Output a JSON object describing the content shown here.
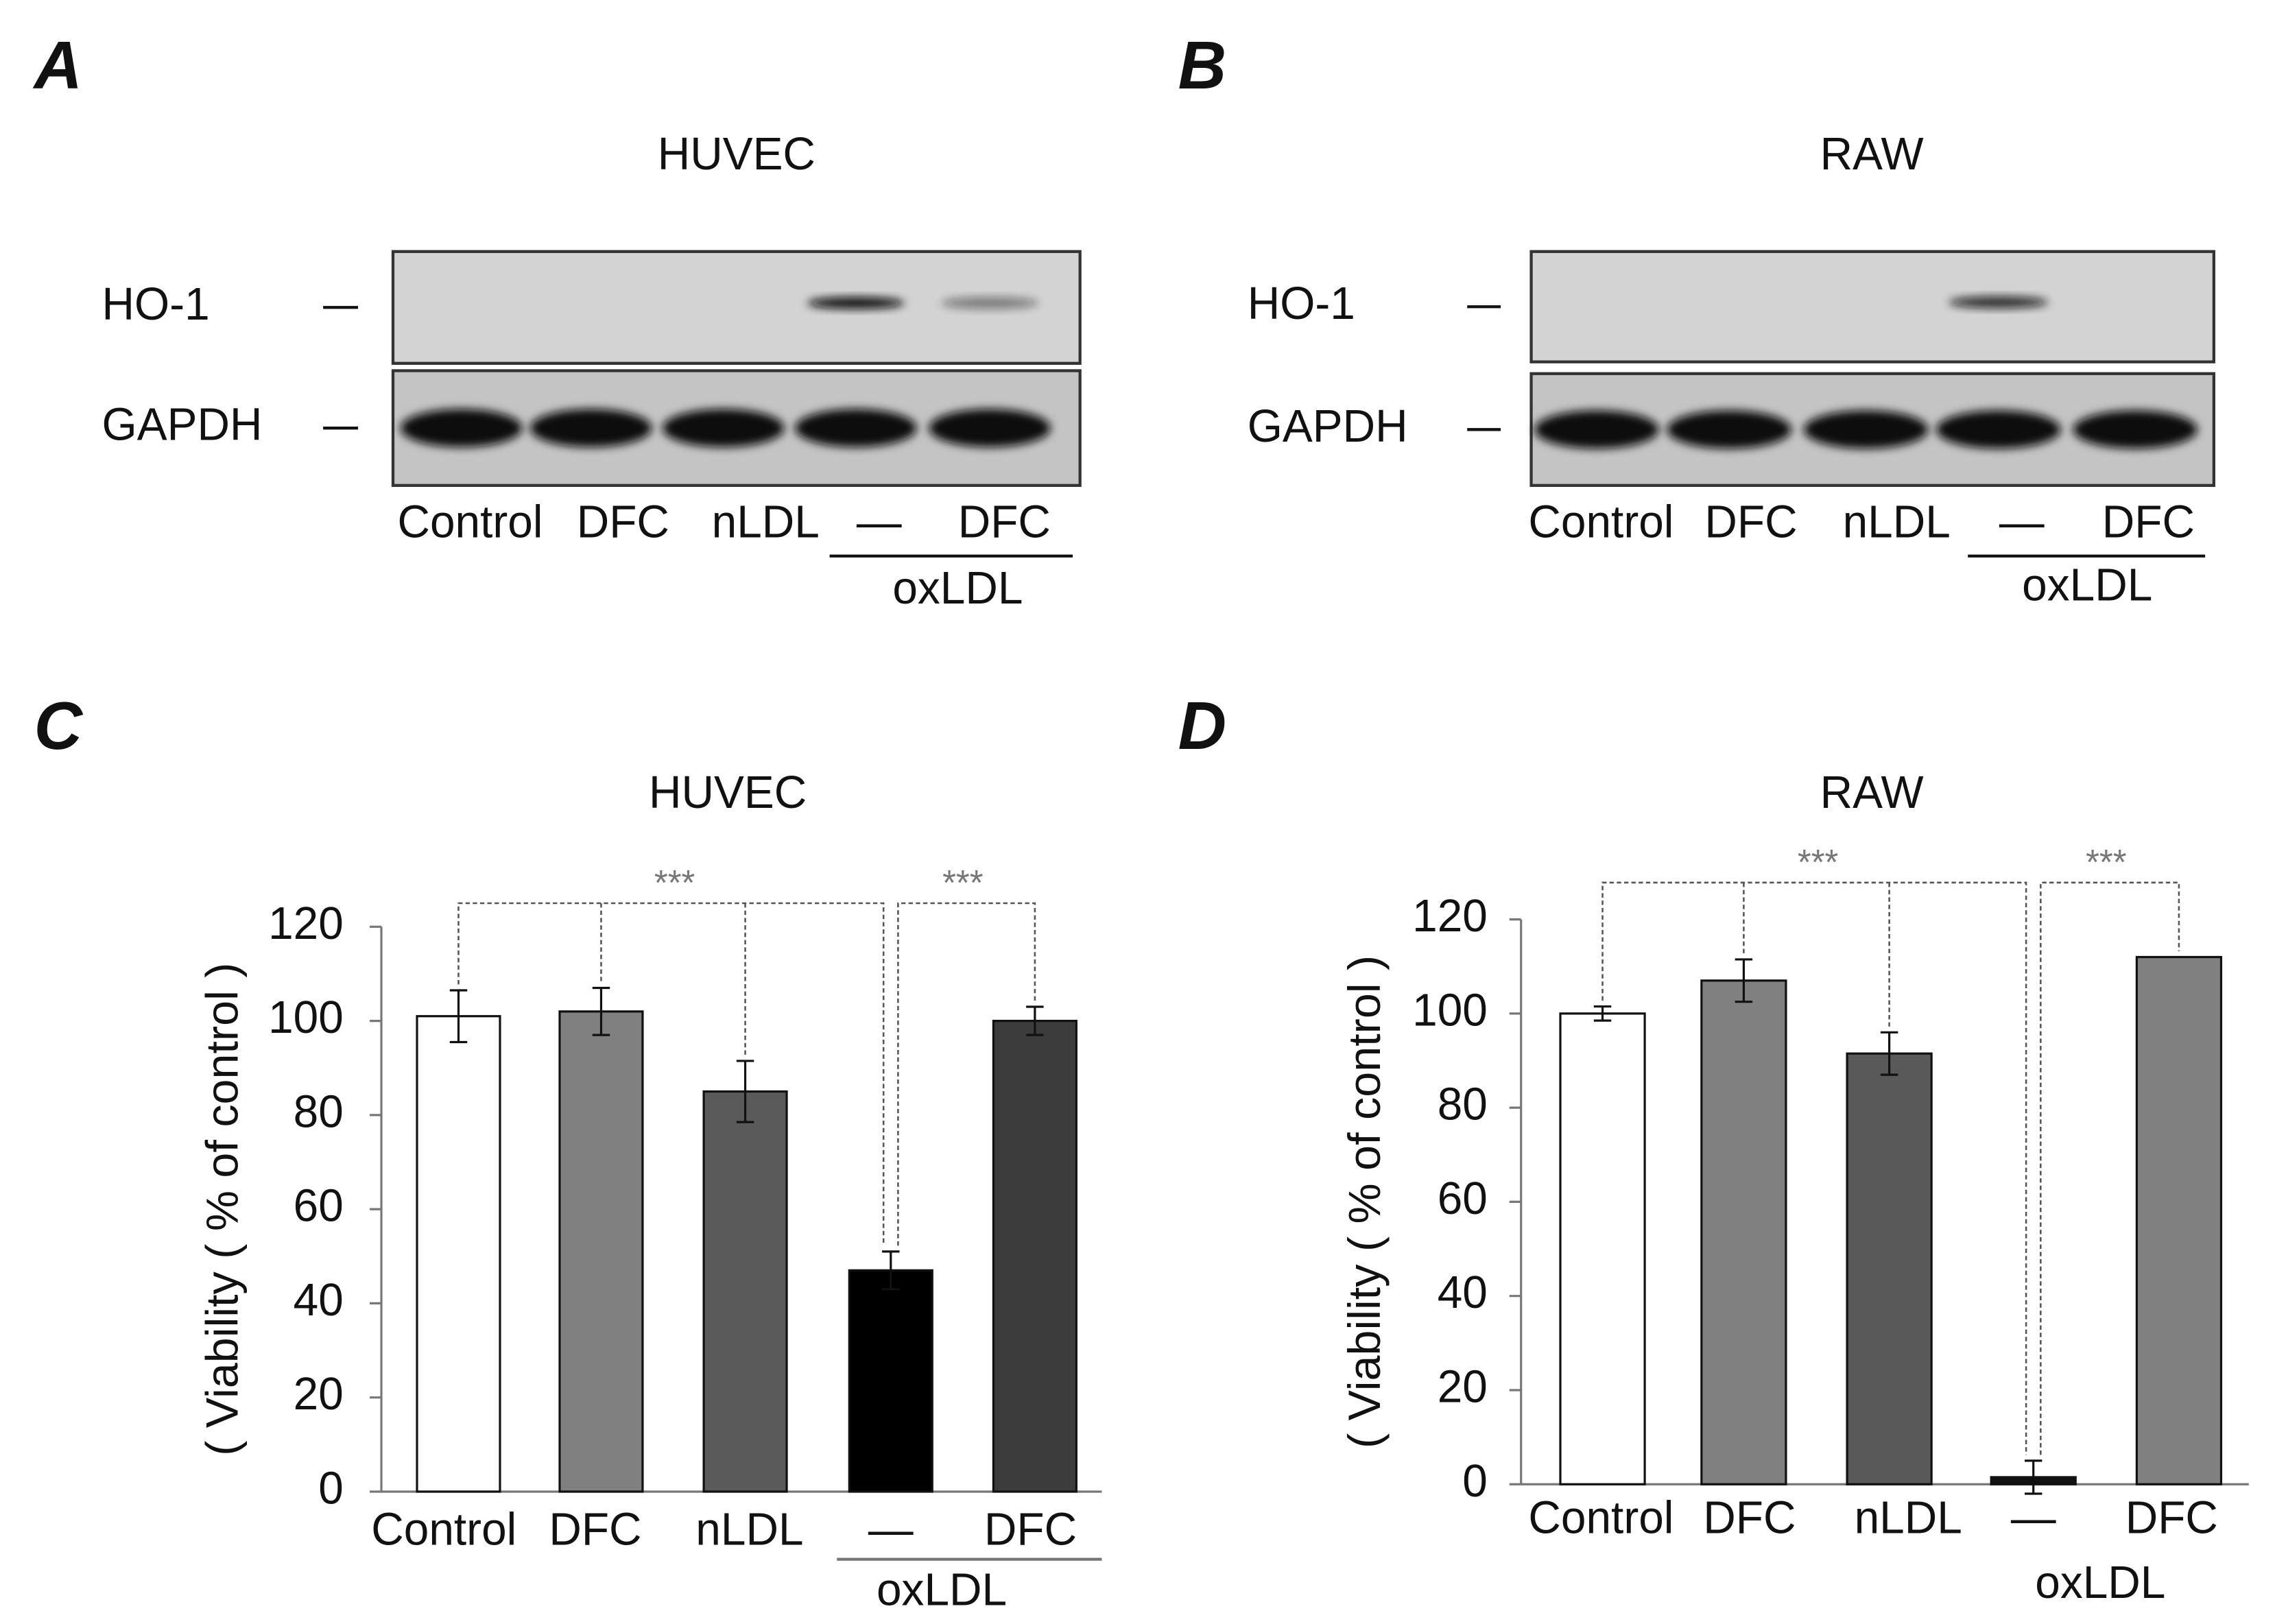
{
  "blots": [
    {
      "letter": "A",
      "title": "HUVEC",
      "rows": [
        "HO-1",
        "GAPDH"
      ],
      "lanes": [
        "Control",
        "DFC",
        "nLDL",
        "—",
        "DFC"
      ],
      "group": "oxLDL"
    },
    {
      "letter": "B",
      "title": "RAW",
      "rows": [
        "HO-1",
        "GAPDH"
      ],
      "lanes": [
        "Control",
        "DFC",
        "nLDL",
        "—",
        "DFC"
      ],
      "group": "oxLDL"
    }
  ],
  "chart_data": [
    {
      "type": "bar",
      "letter": "C",
      "title": "HUVEC",
      "y_label": "( Viability ( % of control )",
      "categories": [
        "Control",
        "DFC",
        "nLDL",
        "—",
        "DFC"
      ],
      "group_label": "oxLDL",
      "values": [
        101,
        102,
        85,
        47,
        100
      ],
      "errors": [
        5.5,
        5,
        6.5,
        4,
        3
      ],
      "colors": [
        "#ffffff",
        "#808080",
        "#5a5a5a",
        "#000000",
        "#3c3c3c"
      ],
      "ylim": [
        0,
        120
      ],
      "yticks": [
        0,
        20,
        40,
        60,
        80,
        100,
        120
      ],
      "annotations": [
        "***",
        "***"
      ]
    },
    {
      "type": "bar",
      "letter": "D",
      "title": "RAW",
      "y_label": "( Viability ( % of control )",
      "categories": [
        "Control",
        "DFC",
        "nLDL",
        "—",
        "DFC"
      ],
      "group_label": "oxLDL",
      "values": [
        100,
        107,
        91.5,
        1.5,
        112
      ],
      "errors": [
        1.5,
        4.5,
        4.5,
        3.5,
        null
      ],
      "colors": [
        "#ffffff",
        "#808080",
        "#595959",
        "#111111",
        "#808080"
      ],
      "ylim": [
        0,
        120
      ],
      "yticks": [
        0,
        20,
        40,
        60,
        80,
        100,
        120
      ],
      "annotations": [
        "***",
        "***"
      ]
    }
  ]
}
